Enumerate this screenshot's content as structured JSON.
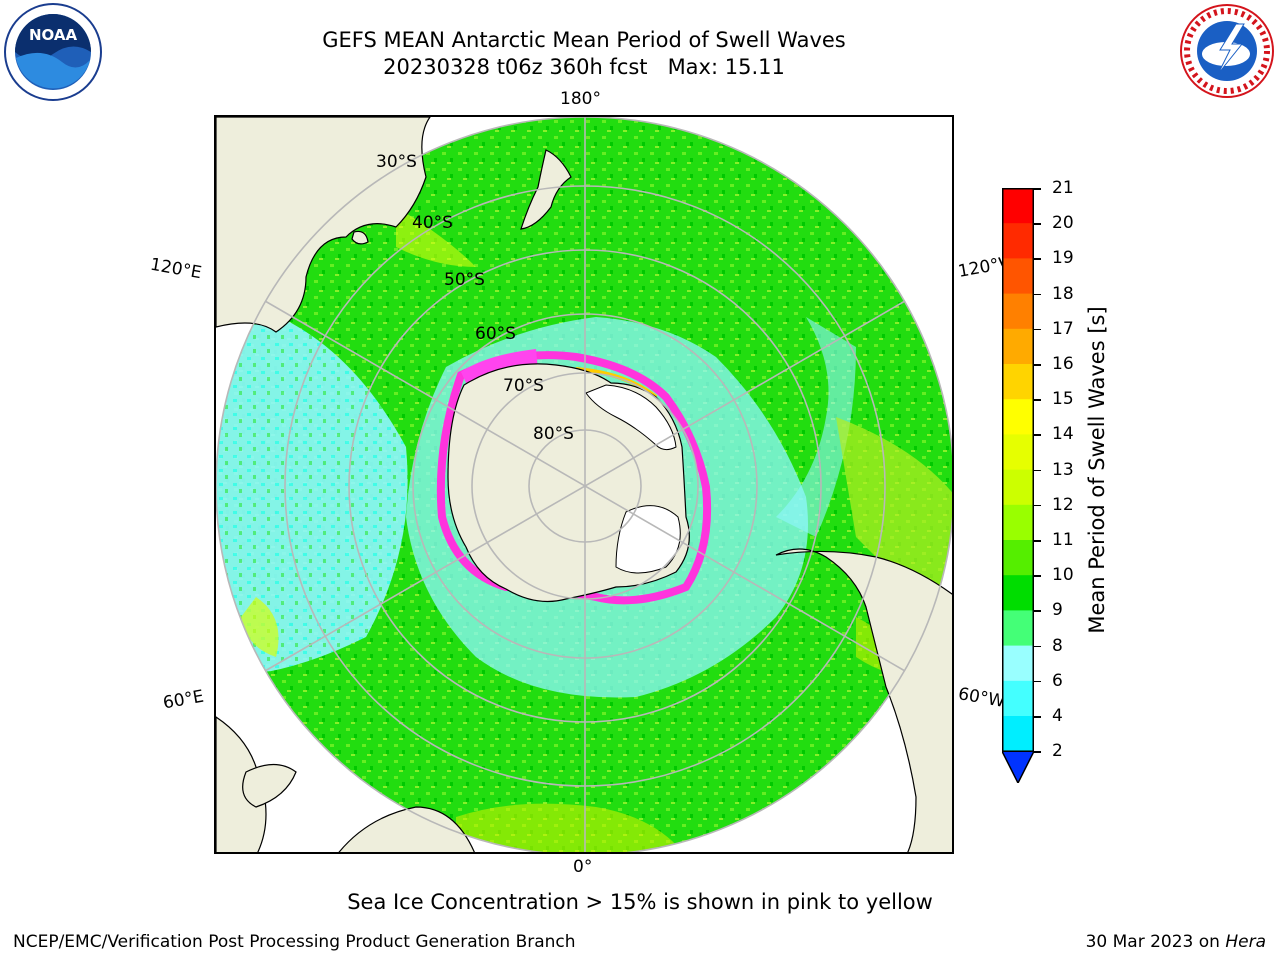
{
  "header": {
    "title_line1": "GEFS MEAN Antarctic Mean Period of Swell Waves",
    "title_line2": "20230328 t06z 360h fcst   Max: 15.11"
  },
  "logos": {
    "left": {
      "icon": "noaa-logo-icon",
      "text": "NOAA"
    },
    "right": {
      "icon": "nws-logo-icon",
      "ring_text": "NATIONAL WEATHER SERVICE"
    }
  },
  "map": {
    "projection": "south-polar-stereographic",
    "longitude_labels": {
      "top": "180°",
      "bottom": "0°",
      "left_upper": "120°E",
      "left_lower": "60°E",
      "right_upper": "120°W",
      "right_lower": "60°W"
    },
    "latitude_labels": [
      "30°S",
      "40°S",
      "50°S",
      "60°S",
      "70°S",
      "80°S"
    ]
  },
  "colorbar": {
    "label": "Mean Period of Swell Waves [s]",
    "ticks": [
      "21",
      "20",
      "19",
      "18",
      "17",
      "16",
      "15",
      "14",
      "13",
      "12",
      "11",
      "10",
      "9",
      "8",
      "6",
      "4",
      "2"
    ],
    "colors": [
      "#ff0000",
      "#ff2a00",
      "#ff5500",
      "#ff8000",
      "#ffaa00",
      "#ffd400",
      "#ffff00",
      "#e6ff00",
      "#ccff00",
      "#99ff00",
      "#55ee00",
      "#00dd00",
      "#44ff77",
      "#99ffff",
      "#44ffff",
      "#00eeff",
      "#00ccff",
      "#0088ff",
      "#0033ff"
    ],
    "extend": "min"
  },
  "footnote": "Sea Ice Concentration > 15% is shown in pink to yellow",
  "footer": {
    "credit": "NCEP/EMC/Verification Post Processing Product Generation Branch",
    "date_prefix": "30 Mar 2023 on ",
    "date_host": "Hera"
  }
}
